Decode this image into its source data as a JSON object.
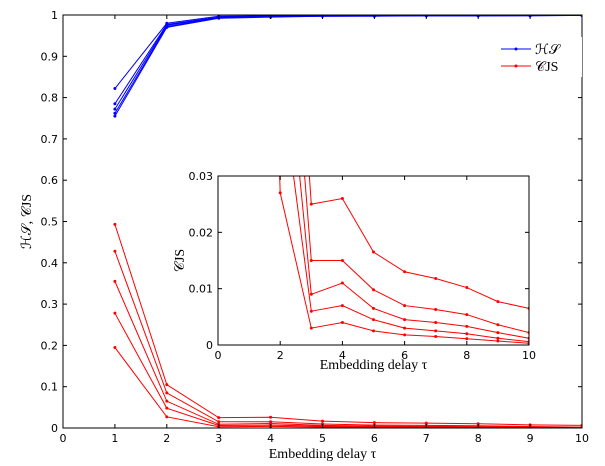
{
  "chart_data": [
    {
      "type": "line",
      "xlabel": "Embedding delay τ",
      "ylabel": "ℋ𝒮, 𝒞JS",
      "x": [
        1,
        2,
        3,
        4,
        5,
        6,
        7,
        8,
        9,
        10
      ],
      "xlim": [
        0,
        10
      ],
      "ylim": [
        0,
        1
      ],
      "xticks": [
        0,
        1,
        2,
        3,
        4,
        5,
        6,
        7,
        8,
        9,
        10
      ],
      "yticks": [
        0,
        0.1,
        0.2,
        0.3,
        0.4,
        0.5,
        0.6,
        0.7,
        0.8,
        0.9,
        1
      ],
      "legend": "upper right",
      "series": [
        {
          "name": "ℋ𝒮",
          "color": "#0000ff",
          "values": [
            [
              0.822,
              0.98,
              0.997,
              0.998,
              0.999,
              0.999,
              0.999,
              0.999,
              0.999,
              0.999
            ],
            [
              0.785,
              0.977,
              0.995,
              0.998,
              0.998,
              0.999,
              0.999,
              0.999,
              0.999,
              0.999
            ],
            [
              0.772,
              0.975,
              0.994,
              0.997,
              0.998,
              0.998,
              0.999,
              0.999,
              0.999,
              0.999
            ],
            [
              0.762,
              0.972,
              0.993,
              0.996,
              0.997,
              0.998,
              0.998,
              0.998,
              0.999,
              0.999
            ],
            [
              0.755,
              0.97,
              0.992,
              0.995,
              0.997,
              0.997,
              0.998,
              0.998,
              0.998,
              0.999
            ]
          ]
        },
        {
          "name": "𝒞JS",
          "color": "#ff0000",
          "values": [
            [
              0.493,
              0.105,
              0.025,
              0.026,
              0.0165,
              0.013,
              0.0118,
              0.0102,
              0.0077,
              0.0065
            ],
            [
              0.428,
              0.085,
              0.015,
              0.015,
              0.0098,
              0.007,
              0.0063,
              0.0054,
              0.0036,
              0.0022
            ],
            [
              0.355,
              0.065,
              0.009,
              0.011,
              0.0065,
              0.0045,
              0.004,
              0.0033,
              0.0022,
              0.0012
            ],
            [
              0.278,
              0.048,
              0.006,
              0.007,
              0.0045,
              0.003,
              0.0025,
              0.002,
              0.0012,
              0.0006
            ],
            [
              0.195,
              0.027,
              0.003,
              0.004,
              0.0025,
              0.0018,
              0.0015,
              0.0011,
              0.0007,
              0.0003
            ]
          ]
        }
      ]
    },
    {
      "type": "line",
      "xlabel": "Embedding delay τ",
      "ylabel": "𝒞JS",
      "x": [
        1,
        2,
        3,
        4,
        5,
        6,
        7,
        8,
        9,
        10
      ],
      "xlim": [
        0,
        10
      ],
      "ylim": [
        0,
        0.03
      ],
      "xticks": [
        0,
        2,
        4,
        6,
        8,
        10
      ],
      "yticks": [
        0,
        0.01,
        0.02,
        0.03
      ],
      "series": [
        {
          "color": "#ff0000",
          "values": [
            [
              0.493,
              0.105,
              0.025,
              0.026,
              0.0165,
              0.013,
              0.0118,
              0.0102,
              0.0077,
              0.0065
            ],
            [
              0.428,
              0.085,
              0.015,
              0.015,
              0.0098,
              0.007,
              0.0063,
              0.0054,
              0.0036,
              0.0022
            ],
            [
              0.355,
              0.065,
              0.009,
              0.011,
              0.0065,
              0.0045,
              0.004,
              0.0033,
              0.0022,
              0.0012
            ],
            [
              0.278,
              0.048,
              0.006,
              0.007,
              0.0045,
              0.003,
              0.0025,
              0.002,
              0.0012,
              0.0006
            ],
            [
              0.195,
              0.027,
              0.003,
              0.004,
              0.0025,
              0.0018,
              0.0015,
              0.0011,
              0.0007,
              0.0003
            ]
          ]
        }
      ]
    }
  ]
}
